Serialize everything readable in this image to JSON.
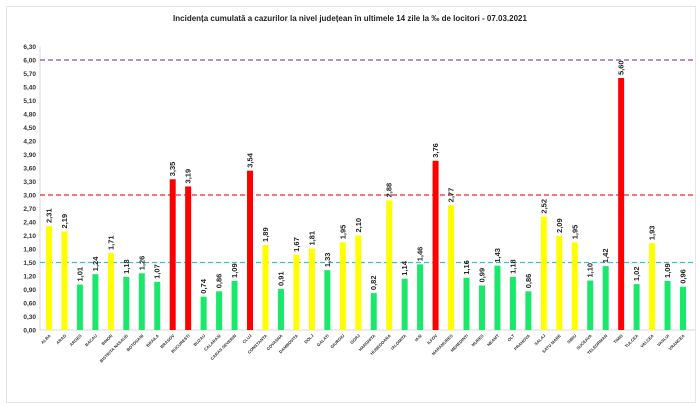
{
  "chart_data": {
    "type": "bar",
    "title": "Incidența cumulată a cazurilor la nivel județean în ultimele 14 zile la ‰ de locitori - 07.03.2021",
    "categories": [
      "ALBA",
      "ARAD",
      "ARGES",
      "BACAU",
      "BIHOR",
      "BISTRITA NASAUD",
      "BOTOSANI",
      "BRAILA",
      "BRASOV",
      "BUCURESTI",
      "BUZAU",
      "CALARASI",
      "CARAS SEVERIN",
      "CLUJ",
      "CONSTANTA",
      "COVASNA",
      "DAMBOVITA",
      "DOLJ",
      "GALATI",
      "GIURGIU",
      "GORJ",
      "HARGHITA",
      "HUNEDOARA",
      "IALOMITA",
      "IASI",
      "ILFOV",
      "MARAMURES",
      "MEHEDINTI",
      "MURES",
      "NEAMT",
      "OLT",
      "PRAHOVA",
      "SALAJ",
      "SATU MARE",
      "SIBIU",
      "SUCEAVA",
      "TELEORMAN",
      "TIMIS",
      "TULCEA",
      "VALCEA",
      "VASLUI",
      "VRANCEA"
    ],
    "values": [
      2.31,
      2.19,
      1.01,
      1.24,
      1.71,
      1.18,
      1.26,
      1.07,
      3.35,
      3.19,
      0.74,
      0.86,
      1.09,
      3.54,
      1.89,
      0.91,
      1.67,
      1.81,
      1.33,
      1.95,
      2.1,
      0.82,
      2.88,
      1.14,
      1.46,
      3.76,
      2.77,
      1.16,
      0.99,
      1.43,
      1.18,
      0.86,
      2.52,
      2.09,
      1.95,
      1.1,
      1.42,
      5.6,
      1.02,
      1.93,
      1.09,
      0.96
    ],
    "ylim": [
      0,
      6.3
    ],
    "yticks": [
      "0,00",
      "0,30",
      "0,60",
      "0,90",
      "1,20",
      "1,50",
      "1,80",
      "2,10",
      "2,40",
      "2,70",
      "3,00",
      "3,30",
      "3,60",
      "3,90",
      "4,20",
      "4,50",
      "4,80",
      "5,10",
      "5,40",
      "5,70",
      "6,00",
      "6,30"
    ],
    "grid": false,
    "thresholds": [
      {
        "value": 1.5,
        "color": "#33c3d6"
      },
      {
        "value": 3.0,
        "color": "#e8262a"
      },
      {
        "value": 6.0,
        "color": "#8e4da8"
      }
    ],
    "colors": {
      "low": "#19e86a",
      "medium": "#ffff00",
      "high": "#ff0000"
    }
  }
}
